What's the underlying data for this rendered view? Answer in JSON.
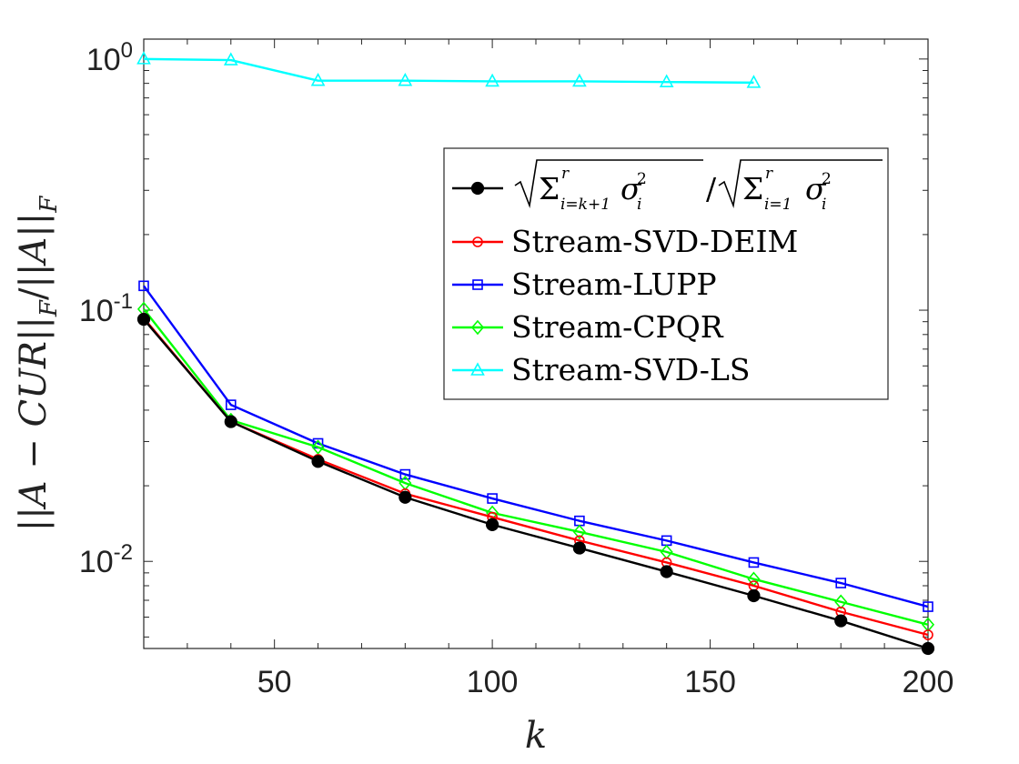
{
  "chart_data": {
    "type": "line",
    "xlabel": "k",
    "ylabel": "||A − CUR||_F / ||A||_F",
    "yscale": "log",
    "xlim": [
      20,
      200
    ],
    "ylim": [
      0.0045,
      1.2
    ],
    "xticks": [
      50,
      100,
      150,
      200
    ],
    "xtick_labels": [
      "50",
      "100",
      "150",
      "200"
    ],
    "yticks": [
      0.01,
      0.1,
      1
    ],
    "ytick_labels": [
      {
        "base": "10",
        "exp": "-2"
      },
      {
        "base": "10",
        "exp": "-1"
      },
      {
        "base": "10",
        "exp": "0"
      }
    ],
    "grid": false,
    "legend_position": "top-right",
    "series": [
      {
        "name": "√(Σ_{i=k+1}^r σ_i²)/√(Σ_{i=1}^r σ_i²)",
        "color": "#000000",
        "marker": "filled-circle",
        "x": [
          20,
          40,
          60,
          80,
          100,
          120,
          140,
          160,
          180,
          200
        ],
        "values": [
          0.092,
          0.036,
          0.025,
          0.018,
          0.014,
          0.0113,
          0.0091,
          0.0073,
          0.0058,
          0.0045
        ]
      },
      {
        "name": "Stream-SVD-DEIM",
        "color": "#ff0000",
        "marker": "circle",
        "x": [
          20,
          40,
          60,
          80,
          100,
          120,
          140,
          160,
          180,
          200
        ],
        "values": [
          0.093,
          0.036,
          0.0255,
          0.0186,
          0.015,
          0.0121,
          0.0099,
          0.008,
          0.0063,
          0.0051
        ]
      },
      {
        "name": "Stream-LUPP",
        "color": "#0000ff",
        "marker": "square",
        "x": [
          20,
          40,
          60,
          80,
          100,
          120,
          140,
          160,
          180,
          200
        ],
        "values": [
          0.125,
          0.042,
          0.0295,
          0.0222,
          0.0178,
          0.0145,
          0.0121,
          0.0099,
          0.0082,
          0.0066
        ]
      },
      {
        "name": "Stream-CPQR",
        "color": "#00ff00",
        "marker": "diamond",
        "x": [
          20,
          40,
          60,
          80,
          100,
          120,
          140,
          160,
          180,
          200
        ],
        "values": [
          0.101,
          0.0365,
          0.0285,
          0.0205,
          0.0156,
          0.0131,
          0.0109,
          0.0085,
          0.0069,
          0.0056
        ]
      },
      {
        "name": "Stream-SVD-LS",
        "color": "#00ffff",
        "marker": "triangle",
        "x": [
          20,
          40,
          60,
          80,
          100,
          120,
          140,
          160
        ],
        "values": [
          1.0,
          0.99,
          0.82,
          0.82,
          0.815,
          0.815,
          0.81,
          0.805
        ]
      }
    ]
  }
}
